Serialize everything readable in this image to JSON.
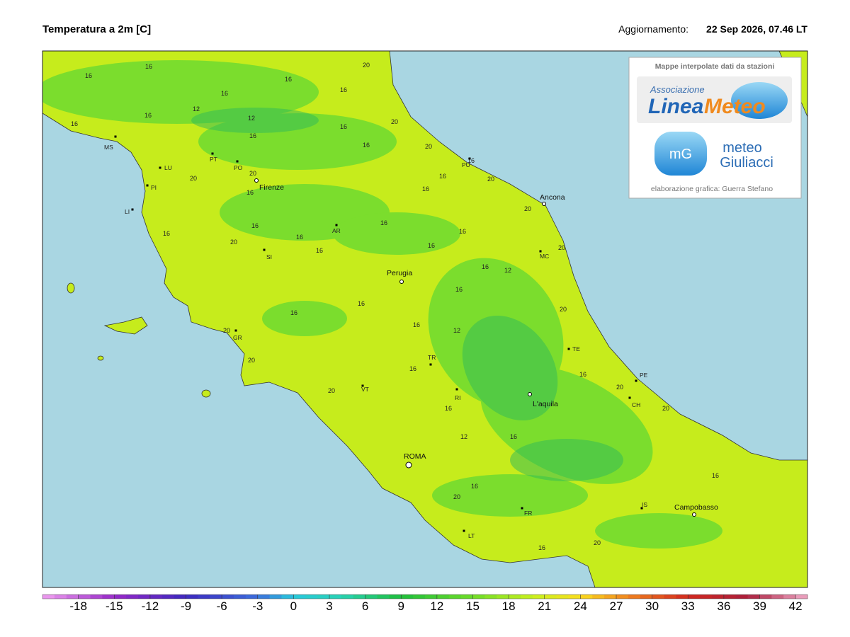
{
  "header": {
    "title": "Temperatura a 2m [C]",
    "update_label": "Aggiornamento:",
    "update_time": "22 Sep 2026, 07.46 LT"
  },
  "credits": {
    "heading": "Mappe interpolate dati da stazioni",
    "logo1_small": "Associazione",
    "logo1_main_a": "Linea",
    "logo1_main_b": "Meteo",
    "logo2_mark": "mG",
    "logo2_line1": "meteo",
    "logo2_line2": "Giuliacci",
    "footer": "elaborazione grafica: Guerra Stefano"
  },
  "cities": [
    {
      "label": "Firenze",
      "major": true
    },
    {
      "label": "Ancona",
      "major": true
    },
    {
      "label": "Perugia",
      "major": true
    },
    {
      "label": "ROMA",
      "major": true
    },
    {
      "label": "L'aquila",
      "major": true
    },
    {
      "label": "Campobasso",
      "major": true
    },
    {
      "label": "MS",
      "major": false
    },
    {
      "label": "LU",
      "major": false
    },
    {
      "label": "PI",
      "major": false
    },
    {
      "label": "LI",
      "major": false
    },
    {
      "label": "PT",
      "major": false
    },
    {
      "label": "PO",
      "major": false
    },
    {
      "label": "AR",
      "major": false
    },
    {
      "label": "SI",
      "major": false
    },
    {
      "label": "GR",
      "major": false
    },
    {
      "label": "VT",
      "major": false
    },
    {
      "label": "TR",
      "major": false
    },
    {
      "label": "RI",
      "major": false
    },
    {
      "label": "PU",
      "major": false
    },
    {
      "label": "MC",
      "major": false
    },
    {
      "label": "TE",
      "major": false
    },
    {
      "label": "PE",
      "major": false
    },
    {
      "label": "CH",
      "major": false
    },
    {
      "label": "FR",
      "major": false
    },
    {
      "label": "LT",
      "major": false
    },
    {
      "label": "IS",
      "major": false
    }
  ],
  "contour_labels": [
    16,
    16,
    16,
    16,
    12,
    12,
    16,
    16,
    20,
    16,
    16,
    20,
    20,
    16,
    20,
    16,
    16,
    20,
    16,
    16,
    16,
    20,
    20,
    16,
    16,
    16,
    16,
    16,
    20,
    16,
    16,
    20,
    20,
    16,
    12,
    12,
    16,
    20,
    20,
    16,
    16,
    20,
    16,
    16,
    12,
    16,
    16,
    16,
    20,
    20,
    20,
    16,
    16,
    20,
    16
  ],
  "colorbar": {
    "range": [
      -21,
      43
    ],
    "ticks": [
      -18,
      -15,
      -12,
      -9,
      -6,
      -3,
      0,
      3,
      6,
      9,
      12,
      15,
      18,
      21,
      24,
      27,
      30,
      33,
      36,
      39,
      42
    ]
  }
}
